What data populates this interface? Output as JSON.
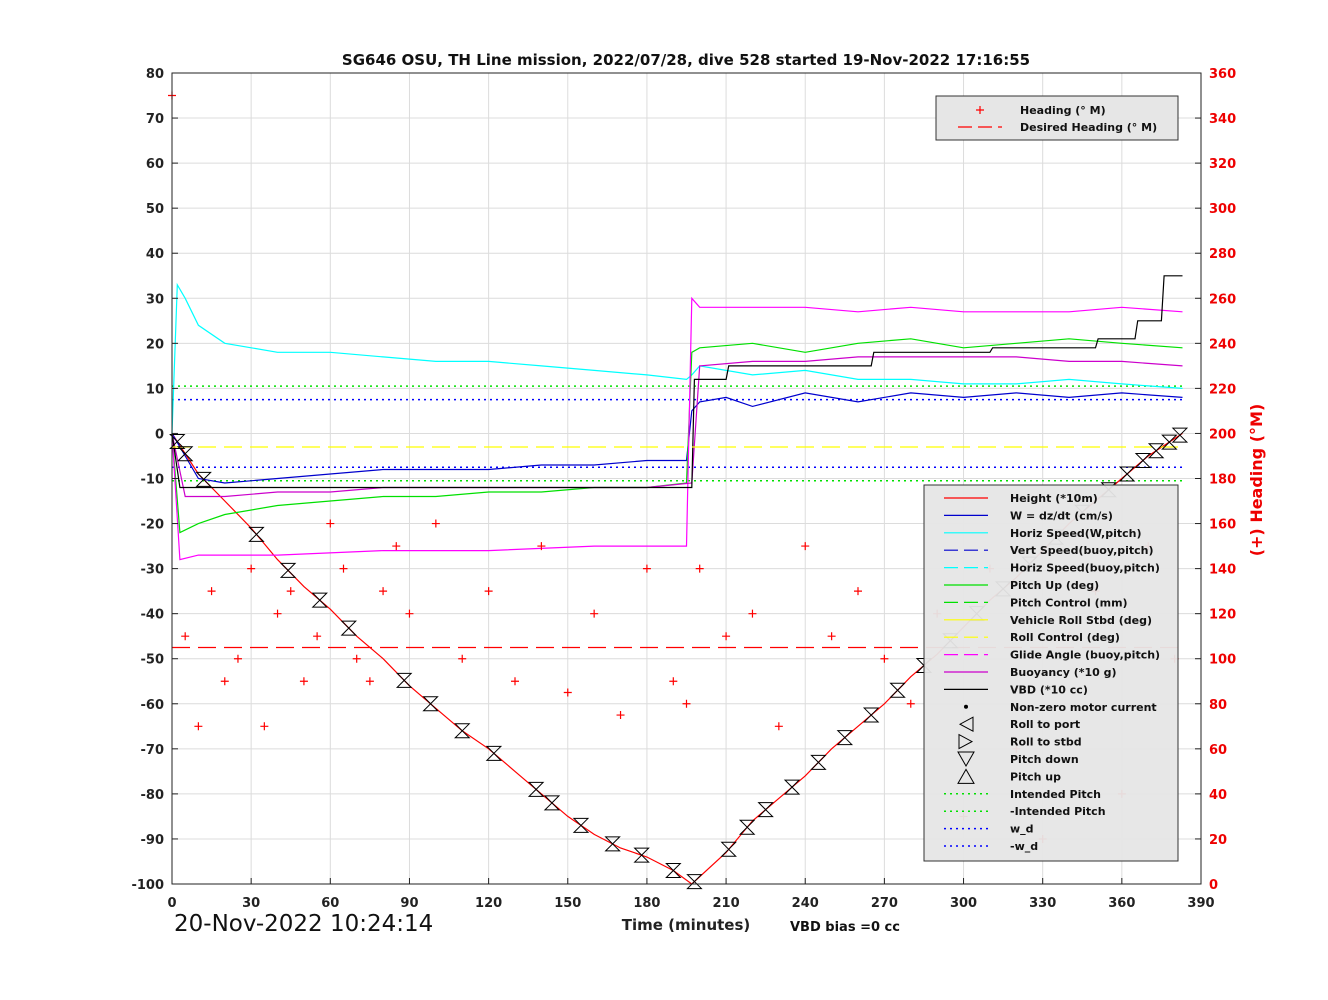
{
  "chart_data": {
    "type": "line",
    "title": "SG646 OSU, TH Line mission, 2022/07/28, dive 528 started 19-Nov-2022 17:16:55",
    "xlabel": "Time (minutes)",
    "ylabel": "",
    "y2label": "(+) Heading (°M)",
    "xlim": [
      0,
      390
    ],
    "ylim": [
      -100,
      80
    ],
    "y2lim": [
      0,
      360
    ],
    "xticks": [
      0,
      30,
      60,
      90,
      120,
      150,
      180,
      210,
      240,
      270,
      300,
      330,
      360,
      390
    ],
    "yticks": [
      80,
      70,
      60,
      50,
      40,
      30,
      20,
      10,
      0,
      -10,
      -20,
      -30,
      -40,
      -50,
      -60,
      -70,
      -80,
      -90,
      -100
    ],
    "y2ticks": [
      360,
      340,
      320,
      300,
      280,
      260,
      240,
      220,
      200,
      180,
      160,
      140,
      120,
      100,
      80,
      60,
      40,
      20,
      0
    ],
    "grid": true,
    "vbd_bias": "VBD bias =0 cc",
    "timestamp": "20-Nov-2022 10:24:14",
    "colors": {
      "heading": "#ff0000",
      "height": "#ff0000",
      "w": "#0000cd",
      "horiz_speed": "#00ffff",
      "pitch": "#00e000",
      "roll": "#ffff00",
      "glide": "#ff00ff",
      "buoyancy": "#cc00cc",
      "vbd": "#000000",
      "intended_pitch": "#00e000",
      "wd": "#0000ff"
    },
    "legend_heading": [
      {
        "label": "Heading (° M)",
        "style": "plus",
        "color": "#ff0000"
      },
      {
        "label": "Desired Heading (° M)",
        "style": "dash",
        "color": "#ff0000"
      }
    ],
    "legend_main": [
      {
        "label": "Height (*10m)",
        "style": "solid",
        "color": "#ff0000"
      },
      {
        "label": "W = dz/dt (cm/s)",
        "style": "solid",
        "color": "#0000cd"
      },
      {
        "label": "Horiz Speed(W,pitch)",
        "style": "solid",
        "color": "#00ffff"
      },
      {
        "label": "Vert Speed(buoy,pitch)",
        "style": "dash",
        "color": "#0000cd"
      },
      {
        "label": "Horiz Speed(buoy,pitch)",
        "style": "dash",
        "color": "#00ffff"
      },
      {
        "label": "Pitch Up (deg)",
        "style": "solid",
        "color": "#00e000"
      },
      {
        "label": "Pitch Control (mm)",
        "style": "dash",
        "color": "#00e000"
      },
      {
        "label": "Vehicle Roll Stbd (deg)",
        "style": "solid",
        "color": "#ffff00"
      },
      {
        "label": "Roll Control (deg)",
        "style": "dash",
        "color": "#ffff00"
      },
      {
        "label": "Glide Angle (buoy,pitch)",
        "style": "dash",
        "color": "#ff00ff"
      },
      {
        "label": "Buoyancy (*10 g)",
        "style": "solid",
        "color": "#cc00cc"
      },
      {
        "label": "VBD (*10 cc)",
        "style": "solid",
        "color": "#000000"
      },
      {
        "label": "Non-zero motor current",
        "style": "dot",
        "color": "#000000"
      },
      {
        "label": "Roll to port",
        "style": "tri-left",
        "color": "#000000"
      },
      {
        "label": "Roll to stbd",
        "style": "tri-right",
        "color": "#000000"
      },
      {
        "label": "Pitch down",
        "style": "tri-down",
        "color": "#000000"
      },
      {
        "label": "Pitch up",
        "style": "tri-up",
        "color": "#000000"
      },
      {
        "label": "Intended Pitch",
        "style": "dotted",
        "color": "#00e000"
      },
      {
        "label": "-Intended Pitch",
        "style": "dotted",
        "color": "#00e000"
      },
      {
        "label": "w_d",
        "style": "dotted",
        "color": "#0000ff"
      },
      {
        "label": "-w_d",
        "style": "dotted",
        "color": "#0000ff"
      }
    ],
    "series": [
      {
        "name": "Height (*10m)",
        "axis": "left",
        "color": "#ff0000",
        "x": [
          0,
          10,
          20,
          30,
          40,
          50,
          60,
          70,
          80,
          90,
          100,
          110,
          120,
          130,
          140,
          150,
          160,
          170,
          180,
          190,
          197,
          210,
          220,
          230,
          240,
          250,
          260,
          270,
          280,
          290,
          300,
          310,
          320,
          330,
          340,
          350,
          360,
          370,
          383
        ],
        "y": [
          0,
          -9,
          -15,
          -21,
          -28,
          -34,
          -39,
          -45,
          -50,
          -56,
          -61,
          -66,
          -70,
          -75,
          -80,
          -85,
          -89,
          -92,
          -94,
          -97,
          -100,
          -93,
          -86,
          -81,
          -76,
          -70,
          -65,
          -60,
          -54,
          -49,
          -43,
          -37,
          -32,
          -26,
          -20,
          -15,
          -10,
          -5,
          0
        ]
      },
      {
        "name": "W = dz/dt (cm/s)",
        "axis": "left",
        "color": "#0000cd",
        "x": [
          0,
          5,
          10,
          20,
          40,
          60,
          80,
          100,
          120,
          140,
          160,
          180,
          195,
          197,
          200,
          210,
          220,
          240,
          260,
          280,
          300,
          320,
          340,
          360,
          383
        ],
        "y": [
          0,
          -5,
          -10,
          -11,
          -10,
          -9,
          -8,
          -8,
          -8,
          -7,
          -7,
          -6,
          -6,
          5,
          7,
          8,
          6,
          9,
          7,
          9,
          8,
          9,
          8,
          9,
          8
        ]
      },
      {
        "name": "Horiz Speed(W,pitch)",
        "axis": "left",
        "color": "#00ffff",
        "x": [
          0,
          2,
          5,
          10,
          20,
          30,
          40,
          60,
          80,
          100,
          120,
          140,
          160,
          180,
          195,
          197,
          200,
          220,
          240,
          260,
          280,
          300,
          320,
          340,
          360,
          383
        ],
        "y": [
          0,
          33,
          30,
          24,
          20,
          19,
          18,
          18,
          17,
          16,
          16,
          15,
          14,
          13,
          12,
          13,
          15,
          13,
          14,
          12,
          12,
          11,
          11,
          12,
          11,
          10
        ]
      },
      {
        "name": "Pitch Up (deg)",
        "axis": "left",
        "color": "#00e000",
        "x": [
          0,
          3,
          10,
          20,
          40,
          60,
          80,
          100,
          120,
          140,
          160,
          180,
          195,
          197,
          200,
          220,
          240,
          260,
          280,
          300,
          320,
          340,
          360,
          383
        ],
        "y": [
          0,
          -22,
          -20,
          -18,
          -16,
          -15,
          -14,
          -14,
          -13,
          -13,
          -12,
          -12,
          -11,
          18,
          19,
          20,
          18,
          20,
          21,
          19,
          20,
          21,
          20,
          19
        ]
      },
      {
        "name": "Glide Angle (buoy,pitch)",
        "axis": "left",
        "color": "#ff00ff",
        "x": [
          0,
          3,
          10,
          40,
          80,
          120,
          160,
          195,
          197,
          200,
          220,
          240,
          260,
          280,
          300,
          320,
          340,
          360,
          383
        ],
        "y": [
          0,
          -28,
          -27,
          -27,
          -26,
          -26,
          -25,
          -25,
          30,
          28,
          28,
          28,
          27,
          28,
          27,
          27,
          27,
          28,
          27
        ]
      },
      {
        "name": "Buoyancy (*10 g)",
        "axis": "left",
        "color": "#cc00cc",
        "x": [
          0,
          5,
          10,
          20,
          40,
          60,
          80,
          100,
          120,
          140,
          160,
          180,
          197,
          200,
          220,
          240,
          260,
          280,
          300,
          320,
          340,
          360,
          383
        ],
        "y": [
          0,
          -14,
          -14,
          -14,
          -13,
          -13,
          -12,
          -12,
          -12,
          -12,
          -12,
          -12,
          -11,
          15,
          16,
          16,
          17,
          17,
          17,
          17,
          16,
          16,
          15
        ]
      },
      {
        "name": "VBD (*10 cc)",
        "axis": "left",
        "color": "#000000",
        "x": [
          0,
          3,
          10,
          40,
          80,
          120,
          160,
          197,
          198,
          210,
          211,
          240,
          265,
          266,
          310,
          311,
          350,
          351,
          365,
          366,
          375,
          376,
          383
        ],
        "y": [
          0,
          -12,
          -12,
          -12,
          -12,
          -12,
          -12,
          -12,
          12,
          12,
          15,
          15,
          15,
          18,
          18,
          19,
          19,
          21,
          21,
          25,
          25,
          35,
          35
        ]
      },
      {
        "name": "Heading (° M)",
        "axis": "right",
        "color": "#ff0000",
        "x": [
          0,
          5,
          10,
          15,
          20,
          25,
          30,
          35,
          40,
          45,
          50,
          55,
          60,
          65,
          70,
          75,
          80,
          85,
          90,
          100,
          110,
          120,
          130,
          140,
          150,
          160,
          170,
          180,
          190,
          195,
          200,
          210,
          220,
          230,
          240,
          250,
          260,
          270,
          280,
          290,
          300,
          310,
          320,
          330,
          340,
          350,
          360,
          370,
          380
        ],
        "y": [
          350,
          110,
          70,
          130,
          90,
          100,
          140,
          70,
          120,
          130,
          90,
          110,
          160,
          140,
          100,
          90,
          130,
          150,
          120,
          160,
          100,
          130,
          90,
          150,
          85,
          120,
          75,
          140,
          90,
          80,
          140,
          110,
          120,
          70,
          150,
          110,
          130,
          100,
          80,
          120,
          30,
          140,
          60,
          20,
          110,
          130,
          40,
          150,
          100
        ]
      },
      {
        "name": "Desired Heading (° M)",
        "axis": "right",
        "color": "#ff0000",
        "x": [
          0,
          383
        ],
        "y": [
          105,
          105
        ]
      },
      {
        "name": "Roll Control (deg)",
        "axis": "left",
        "color": "#ffff00",
        "x": [
          0,
          383
        ],
        "y": [
          -3,
          -3
        ]
      }
    ],
    "reference_lines": [
      {
        "name": "Intended Pitch",
        "y": 10.5,
        "color": "#00e000"
      },
      {
        "name": "-Intended Pitch",
        "y": -10.5,
        "color": "#00e000"
      },
      {
        "name": "w_d",
        "y": 7.5,
        "color": "#0000ff"
      },
      {
        "name": "-w_d",
        "y": -7.5,
        "color": "#0000ff"
      }
    ],
    "markers": {
      "pitch_events_x": [
        2,
        5,
        12,
        32,
        44,
        56,
        67,
        88,
        98,
        110,
        122,
        138,
        144,
        155,
        167,
        178,
        190,
        198,
        211,
        218,
        225,
        235,
        245,
        255,
        265,
        275,
        285,
        295,
        305,
        315,
        325,
        335,
        345,
        355,
        362,
        368,
        373,
        378,
        382
      ]
    }
  }
}
